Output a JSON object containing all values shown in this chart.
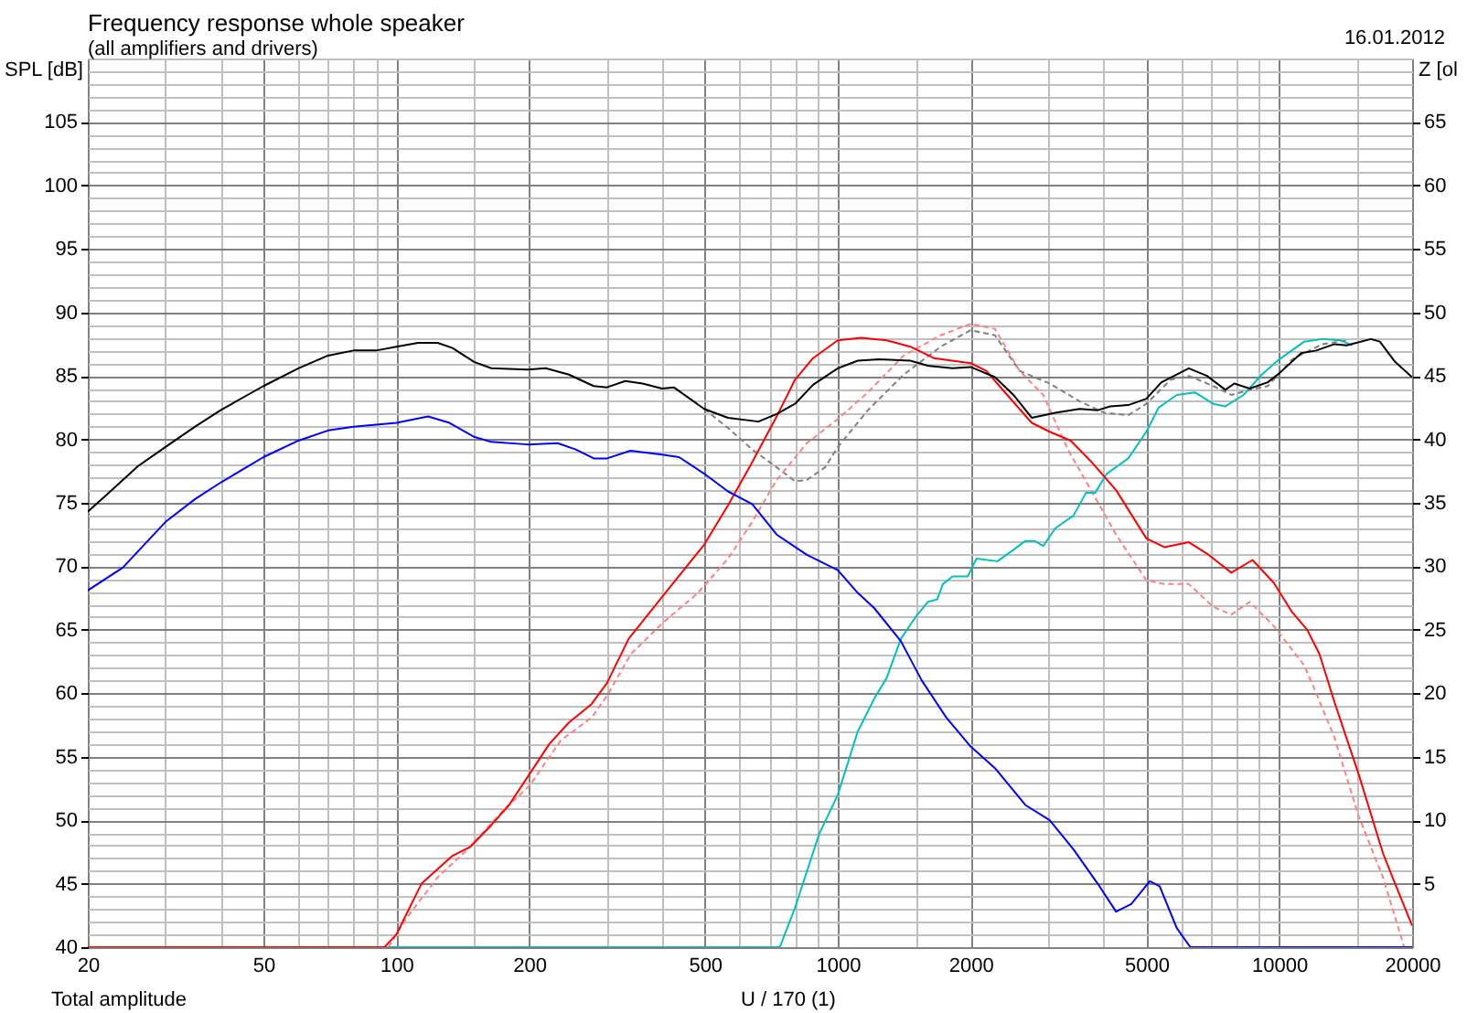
{
  "chart_data": {
    "type": "line",
    "title": "Frequency response whole speaker",
    "subtitle": "(all amplifiers and drivers)",
    "ylabel": "SPL [dB]",
    "y2label": "Z [ol",
    "annotations": [
      "16.01.2012",
      "Total amplitude",
      "U / 170 (1)"
    ],
    "log": "x",
    "grid": true,
    "xlim": [
      20,
      20000
    ],
    "xticks": [
      20,
      {
        "value": 30,
        "label": null
      },
      {
        "value": 40,
        "label": null
      },
      50,
      {
        "value": 60,
        "label": null
      },
      {
        "value": 70,
        "label": null
      },
      {
        "value": 80,
        "label": null
      },
      {
        "value": 90,
        "label": null
      },
      100,
      {
        "value": 150,
        "label": null
      },
      200,
      {
        "value": 300,
        "label": null
      },
      {
        "value": 400,
        "label": null
      },
      500,
      {
        "value": 600,
        "label": null
      },
      {
        "value": 700,
        "label": null
      },
      {
        "value": 800,
        "label": null
      },
      {
        "value": 900,
        "label": null
      },
      1000,
      {
        "value": 1500,
        "label": null
      },
      2000,
      {
        "value": 3000,
        "label": null
      },
      {
        "value": 4000,
        "label": null
      },
      5000,
      {
        "value": 6000,
        "label": null
      },
      {
        "value": 7000,
        "label": null
      },
      {
        "value": 8000,
        "label": null
      },
      {
        "value": 9000,
        "label": null
      },
      10000,
      {
        "value": 15000,
        "label": null
      },
      20000
    ],
    "ylim": [
      40,
      110
    ],
    "yticks": [
      40,
      {
        "value": 41,
        "label": null
      },
      {
        "value": 42,
        "label": null
      },
      {
        "value": 43,
        "label": null
      },
      {
        "value": 44,
        "label": null
      },
      45,
      {
        "value": 46,
        "label": null
      },
      {
        "value": 47,
        "label": null
      },
      {
        "value": 48,
        "label": null
      },
      {
        "value": 49,
        "label": null
      },
      50,
      {
        "value": 51,
        "label": null
      },
      {
        "value": 52,
        "label": null
      },
      {
        "value": 53,
        "label": null
      },
      {
        "value": 54,
        "label": null
      },
      55,
      {
        "value": 56,
        "label": null
      },
      {
        "value": 57,
        "label": null
      },
      {
        "value": 58,
        "label": null
      },
      {
        "value": 59,
        "label": null
      },
      60,
      {
        "value": 61,
        "label": null
      },
      {
        "value": 62,
        "label": null
      },
      {
        "value": 63,
        "label": null
      },
      {
        "value": 64,
        "label": null
      },
      65,
      {
        "value": 66,
        "label": null
      },
      {
        "value": 67,
        "label": null
      },
      {
        "value": 68,
        "label": null
      },
      {
        "value": 69,
        "label": null
      },
      70,
      {
        "value": 71,
        "label": null
      },
      {
        "value": 72,
        "label": null
      },
      {
        "value": 73,
        "label": null
      },
      {
        "value": 74,
        "label": null
      },
      75,
      {
        "value": 76,
        "label": null
      },
      {
        "value": 77,
        "label": null
      },
      {
        "value": 78,
        "label": null
      },
      {
        "value": 79,
        "label": null
      },
      80,
      {
        "value": 81,
        "label": null
      },
      {
        "value": 82,
        "label": null
      },
      {
        "value": 83,
        "label": null
      },
      {
        "value": 84,
        "label": null
      },
      85,
      {
        "value": 86,
        "label": null
      },
      {
        "value": 87,
        "label": null
      },
      {
        "value": 88,
        "label": null
      },
      {
        "value": 89,
        "label": null
      },
      90,
      {
        "value": 91,
        "label": null
      },
      {
        "value": 92,
        "label": null
      },
      {
        "value": 93,
        "label": null
      },
      {
        "value": 94,
        "label": null
      },
      95,
      {
        "value": 96,
        "label": null
      },
      {
        "value": 97,
        "label": null
      },
      {
        "value": 98,
        "label": null
      },
      {
        "value": 99,
        "label": null
      },
      100,
      {
        "value": 101,
        "label": null
      },
      {
        "value": 102,
        "label": null
      },
      {
        "value": 103,
        "label": null
      },
      {
        "value": 104,
        "label": null
      },
      105,
      {
        "value": 106,
        "label": null
      },
      {
        "value": 107,
        "label": null
      },
      {
        "value": 108,
        "label": null
      },
      {
        "value": 109,
        "label": null
      },
      {
        "value": 110,
        "label": null
      }
    ],
    "y2lim": [
      0,
      70
    ],
    "y2ticks": [
      5,
      10,
      15,
      20,
      25,
      30,
      35,
      40,
      45,
      50,
      55,
      60,
      65
    ],
    "series": [
      {
        "color": "#808080",
        "line_style": "dashed",
        "x": [
          498,
          564,
          640,
          727,
          800,
          851,
          936,
          1000,
          1170,
          1410,
          1710,
          2000,
          2270,
          2580,
          3020,
          3530,
          4010,
          4550,
          5000,
          5680,
          6240,
          7090,
          7790,
          8570,
          9420,
          10690,
          12530,
          14210
        ],
        "values": [
          82.4,
          80.9,
          79.2,
          77.8,
          76.7,
          76.8,
          77.8,
          79.4,
          82.3,
          85.1,
          87.3,
          88.6,
          88.2,
          85.4,
          84.4,
          83.0,
          82.1,
          81.9,
          82.8,
          84.7,
          85.0,
          84.2,
          83.5,
          83.9,
          84.2,
          86.3,
          87.5,
          87.8
        ]
      },
      {
        "color": "#ff8080",
        "line_style": "dashed",
        "x": [
          96,
          105,
          124,
          145,
          175,
          200,
          236,
          277,
          300,
          340,
          400,
          482,
          564,
          640,
          727,
          851,
          1000,
          1170,
          1410,
          1710,
          2000,
          2270,
          2580,
          2920,
          3320,
          3760,
          4270,
          5000,
          5500,
          6240,
          7090,
          7790,
          8570,
          9720,
          11390,
          12130,
          13340,
          15140,
          17180,
          19190,
          20000
        ],
        "values": [
          40,
          42.2,
          45.5,
          47.7,
          50.8,
          52.7,
          56.3,
          58.1,
          59.8,
          63.1,
          65.5,
          67.9,
          70.6,
          73.5,
          76.8,
          79.7,
          81.6,
          83.7,
          86.6,
          88.2,
          89.1,
          88.7,
          85.4,
          83.5,
          79.2,
          75.9,
          72.5,
          68.9,
          68.6,
          68.6,
          66.8,
          66.2,
          67.2,
          65.3,
          62.2,
          60.0,
          56.5,
          50.3,
          45.5,
          40,
          40
        ]
      },
      {
        "color": "#00c0c0",
        "x": [
          94,
          739,
          800,
          907,
          1000,
          1110,
          1210,
          1290,
          1390,
          1500,
          1600,
          1680,
          1730,
          1820,
          1970,
          2060,
          2300,
          2500,
          2660,
          2790,
          2920,
          3110,
          3420,
          3650,
          3830,
          4070,
          4550,
          5000,
          5330,
          5860,
          6440,
          7090,
          7550,
          8300,
          9130,
          10000,
          11390,
          12530,
          13770,
          14660
        ],
        "values": [
          40,
          40,
          43.1,
          48.9,
          52.0,
          57.0,
          59.6,
          61.2,
          64.3,
          66.0,
          67.2,
          67.4,
          68.6,
          69.2,
          69.2,
          70.6,
          70.4,
          71.3,
          72.0,
          72.0,
          71.6,
          73.0,
          74.0,
          75.8,
          75.8,
          77.3,
          78.5,
          80.6,
          82.5,
          83.5,
          83.7,
          82.8,
          82.6,
          83.5,
          85.1,
          86.3,
          87.7,
          87.9,
          87.8,
          87.4
        ]
      },
      {
        "color": "#ff0000",
        "x": [
          20,
          94,
          100,
          114,
          134,
          147,
          164,
          180,
          200,
          222,
          246,
          276,
          300,
          336,
          400,
          498,
          564,
          640,
          727,
          800,
          879,
          1000,
          1130,
          1290,
          1460,
          1650,
          2000,
          2170,
          2420,
          2750,
          3020,
          3370,
          3760,
          4270,
          5000,
          5500,
          6240,
          6860,
          7790,
          8700,
          9720,
          10690,
          11570,
          12330,
          13340,
          15140,
          17180,
          18300,
          20000
        ],
        "values": [
          40,
          40,
          41.0,
          45.0,
          47.2,
          47.9,
          49.6,
          51.2,
          53.6,
          56.0,
          57.7,
          59.1,
          60.8,
          64.3,
          67.6,
          71.7,
          74.8,
          78.2,
          81.8,
          84.7,
          86.4,
          87.8,
          88.0,
          87.8,
          87.3,
          86.4,
          86.0,
          85.4,
          83.5,
          81.3,
          80.6,
          79.9,
          78.2,
          76.0,
          72.2,
          71.5,
          71.9,
          71.0,
          69.5,
          70.5,
          68.7,
          66.4,
          65.0,
          63.1,
          59.3,
          53.6,
          47.4,
          45.0,
          41.7
        ]
      },
      {
        "color": "#0000ff",
        "x": [
          20,
          24,
          30,
          35,
          40,
          50,
          60,
          70,
          80,
          100,
          118,
          132,
          150,
          164,
          198,
          232,
          255,
          280,
          300,
          339,
          400,
          437,
          498,
          564,
          640,
          727,
          851,
          1000,
          1110,
          1210,
          1390,
          1550,
          1760,
          2000,
          2270,
          2660,
          3020,
          3420,
          3880,
          4270,
          4620,
          5090,
          5360,
          5860,
          6290,
          20000
        ],
        "values": [
          68.1,
          69.9,
          73.5,
          75.3,
          76.6,
          78.6,
          79.9,
          80.7,
          81.0,
          81.3,
          81.8,
          81.3,
          80.2,
          79.8,
          79.6,
          79.7,
          79.2,
          78.5,
          78.5,
          79.1,
          78.8,
          78.6,
          77.3,
          75.9,
          74.9,
          72.5,
          70.9,
          69.7,
          67.9,
          66.7,
          64.1,
          61.0,
          58.1,
          55.8,
          54.1,
          51.2,
          50.0,
          47.7,
          45.0,
          42.8,
          43.4,
          45.2,
          44.8,
          41.5,
          40,
          40
        ]
      },
      {
        "color": "#000000",
        "x": [
          20,
          22,
          26,
          30,
          35,
          40,
          50,
          60,
          70,
          80,
          90,
          100,
          112,
          124,
          134,
          150,
          164,
          198,
          218,
          246,
          280,
          300,
          330,
          361,
          400,
          425,
          498,
          564,
          661,
          727,
          800,
          879,
          1000,
          1110,
          1240,
          1460,
          1600,
          1820,
          2000,
          2270,
          2500,
          2750,
          3110,
          3530,
          3880,
          4140,
          4550,
          5000,
          5410,
          6240,
          6860,
          7550,
          7910,
          8570,
          9420,
          10000,
          11210,
          12130,
          13340,
          14210,
          16130,
          16900,
          18300,
          20000
        ],
        "values": [
          74.3,
          75.6,
          77.9,
          79.4,
          81.0,
          82.3,
          84.2,
          85.6,
          86.6,
          87.0,
          87.0,
          87.3,
          87.6,
          87.6,
          87.2,
          86.1,
          85.6,
          85.5,
          85.6,
          85.1,
          84.2,
          84.1,
          84.6,
          84.4,
          84.0,
          84.1,
          82.4,
          81.7,
          81.4,
          82.0,
          82.8,
          84.3,
          85.6,
          86.2,
          86.3,
          86.2,
          85.8,
          85.6,
          85.7,
          84.9,
          83.5,
          81.7,
          82.1,
          82.4,
          82.3,
          82.6,
          82.7,
          83.2,
          84.5,
          85.6,
          85.0,
          83.9,
          84.4,
          84.0,
          84.5,
          85.2,
          86.8,
          87.0,
          87.5,
          87.4,
          87.9,
          87.7,
          86.1,
          84.9
        ]
      }
    ]
  }
}
